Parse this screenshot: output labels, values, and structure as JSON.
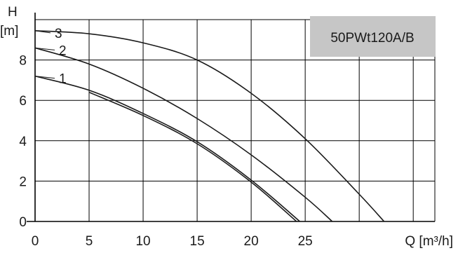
{
  "chart_data": {
    "type": "line",
    "title": "50PWt120A/B",
    "xlabel": "Q [m³/h]",
    "ylabel_top": "H",
    "ylabel_unit": "[m]",
    "xlim": [
      0,
      37
    ],
    "ylim": [
      0,
      10
    ],
    "x_ticks": [
      0,
      5,
      10,
      15,
      20,
      25
    ],
    "y_ticks": [
      0,
      2,
      4,
      6,
      8
    ],
    "grid": true,
    "colors": {
      "grid": "#000000",
      "curve": "#1a1a1a",
      "title_box": "#c6c6c6"
    },
    "series": [
      {
        "name": "1",
        "x": [
          0,
          5,
          10,
          15,
          20,
          24.5
        ],
        "y": [
          7.2,
          6.5,
          5.35,
          3.95,
          2.05,
          0
        ]
      },
      {
        "name": "1",
        "x": [
          5,
          10,
          15,
          20,
          24.2
        ],
        "y": [
          6.4,
          5.25,
          3.85,
          1.95,
          0
        ]
      },
      {
        "name": "2",
        "x": [
          0,
          5,
          10,
          15,
          20,
          25,
          27.5
        ],
        "y": [
          8.6,
          7.8,
          6.6,
          5.1,
          3.3,
          1.2,
          0
        ]
      },
      {
        "name": "3",
        "x": [
          0,
          5,
          10,
          15,
          20,
          25,
          30,
          32.3
        ],
        "y": [
          9.45,
          9.3,
          8.85,
          8.0,
          6.35,
          4.1,
          1.35,
          0
        ]
      }
    ],
    "curve_labels": [
      {
        "text": "1",
        "x": 0,
        "y": 7.2
      },
      {
        "text": "2",
        "x": 0,
        "y": 8.6
      },
      {
        "text": "3",
        "x": 0,
        "y": 9.45
      }
    ]
  }
}
